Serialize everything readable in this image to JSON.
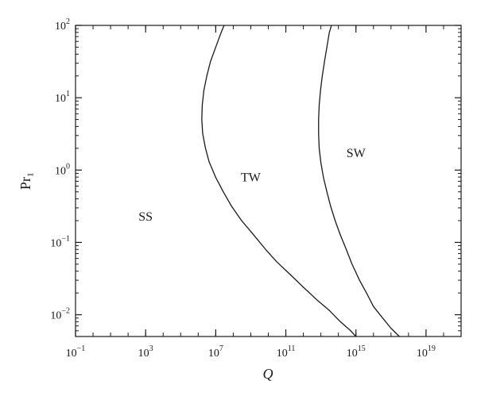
{
  "chart_data": {
    "type": "line",
    "xscale": "log",
    "yscale": "log",
    "xlim": [
      0.1,
      1e+21
    ],
    "ylim": [
      0.005,
      100
    ],
    "xlabel": "Q",
    "ylabel": "Pr₁",
    "grid": false,
    "x_ticks": [
      {
        "value": 0.1,
        "base": "10",
        "exp": "−1"
      },
      {
        "value": 1000,
        "base": "10",
        "exp": "3"
      },
      {
        "value": 10000000.0,
        "base": "10",
        "exp": "7"
      },
      {
        "value": 100000000000.0,
        "base": "10",
        "exp": "11"
      },
      {
        "value": 1000000000000000.0,
        "base": "10",
        "exp": "15"
      },
      {
        "value": 1e+19,
        "base": "10",
        "exp": "19"
      }
    ],
    "y_ticks": [
      {
        "value": 0.01,
        "base": "10",
        "exp": "−2"
      },
      {
        "value": 0.1,
        "base": "10",
        "exp": "−1"
      },
      {
        "value": 1,
        "base": "10",
        "exp": "0"
      },
      {
        "value": 10,
        "base": "10",
        "exp": "1"
      },
      {
        "value": 100,
        "base": "10",
        "exp": "2"
      }
    ],
    "series": [
      {
        "points": [
          [
            1000000000000000.0,
            0.005
          ],
          [
            500000000000000.0,
            0.006
          ],
          [
            130000000000000.0,
            0.008
          ],
          [
            30000000000000.0,
            0.0115
          ],
          [
            6000000000000.0,
            0.016
          ],
          [
            1000000000000.0,
            0.024
          ],
          [
            200000000000.0,
            0.035
          ],
          [
            30000000000.0,
            0.054
          ],
          [
            7000000000.0,
            0.08
          ],
          [
            1500000000.0,
            0.126
          ],
          [
            300000000.0,
            0.2
          ],
          [
            80000000.0,
            0.316
          ],
          [
            27000000.0,
            0.5
          ],
          [
            10000000.0,
            0.79
          ],
          [
            4200000.0,
            1.3
          ],
          [
            2600000.0,
            2.0
          ],
          [
            1800000.0,
            3.2
          ],
          [
            1600000.0,
            5.0
          ],
          [
            1700000.0,
            7.9
          ],
          [
            2100000.0,
            12.6
          ],
          [
            3100000.0,
            20
          ],
          [
            5000000.0,
            31.6
          ],
          [
            10000000.0,
            50
          ],
          [
            20000000.0,
            79
          ],
          [
            30000000.0,
            100
          ]
        ]
      },
      {
        "points": [
          [
            3e+17,
            0.005
          ],
          [
            1e+17,
            0.0065
          ],
          [
            3e+16,
            0.0093
          ],
          [
            1e+16,
            0.013
          ],
          [
            4000000000000000.0,
            0.02
          ],
          [
            1600000000000000.0,
            0.03
          ],
          [
            600000000000000.0,
            0.05
          ],
          [
            280000000000000.0,
            0.08
          ],
          [
            130000000000000.0,
            0.126
          ],
          [
            65000000000000.0,
            0.2
          ],
          [
            36000000000000.0,
            0.316
          ],
          [
            22000000000000.0,
            0.5
          ],
          [
            14000000000000.0,
            0.79
          ],
          [
            10000000000000.0,
            1.26
          ],
          [
            8000000000000.0,
            2.0
          ],
          [
            7400000000000.0,
            3.2
          ],
          [
            7400000000000.0,
            5.0
          ],
          [
            8000000000000.0,
            7.9
          ],
          [
            9500000000000.0,
            12.6
          ],
          [
            12000000000000.0,
            20
          ],
          [
            16000000000000.0,
            31.6
          ],
          [
            22000000000000.0,
            50
          ],
          [
            30000000000000.0,
            79
          ],
          [
            40000000000000.0,
            100
          ]
        ]
      }
    ],
    "annotations": [
      {
        "text": "SS",
        "x": 1000.0,
        "y": 0.2
      },
      {
        "text": "TW",
        "x": 1000000000.0,
        "y": 0.7
      },
      {
        "text": "SW",
        "x": 1000000000000000.0,
        "y": 1.5
      }
    ]
  }
}
